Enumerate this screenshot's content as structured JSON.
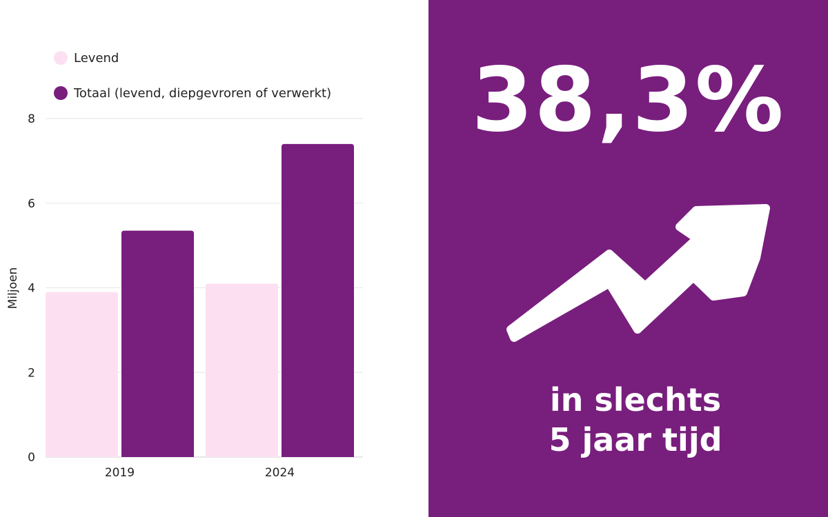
{
  "colors": {
    "levend": "#fce0f2",
    "totaal": "#781e7d",
    "panel": "#781e7d",
    "grid": "#e6e6e6",
    "axis_text": "#222222"
  },
  "legend": [
    {
      "label": "Levend",
      "color": "#fce0f2"
    },
    {
      "label": "Totaal (levend, diepgevroren of verwerkt)",
      "color": "#781e7d"
    }
  ],
  "chart_data": {
    "type": "bar",
    "categories": [
      "2019",
      "2024"
    ],
    "series": [
      {
        "name": "Levend",
        "values": [
          3.9,
          4.1
        ]
      },
      {
        "name": "Totaal (levend, diepgevroren of verwerkt)",
        "values": [
          5.35,
          7.4
        ]
      }
    ],
    "ylabel": "Miljoen",
    "xlabel": "",
    "ylim": [
      0,
      8
    ],
    "yticks": [
      0,
      2,
      4,
      6,
      8
    ],
    "grid": true,
    "legend_position": "top-left"
  },
  "highlight": {
    "value": "38,3%",
    "icon": "trend-up-arrow-icon",
    "caption_line1": "in slechts",
    "caption_line2": "5 jaar tijd"
  }
}
